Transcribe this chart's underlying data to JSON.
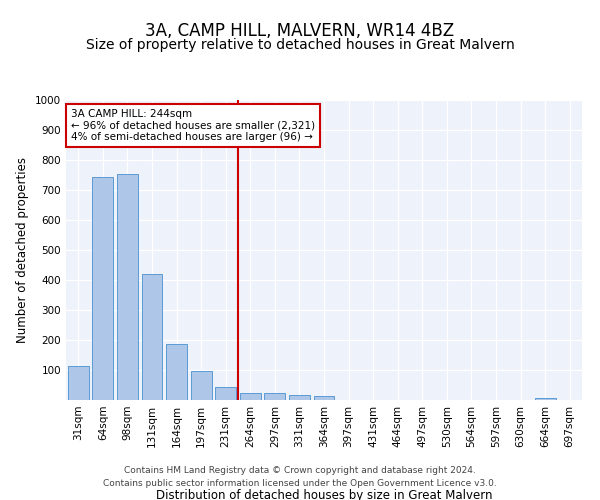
{
  "title": "3A, CAMP HILL, MALVERN, WR14 4BZ",
  "subtitle": "Size of property relative to detached houses in Great Malvern",
  "xlabel": "Distribution of detached houses by size in Great Malvern",
  "ylabel": "Number of detached properties",
  "footer_line1": "Contains HM Land Registry data © Crown copyright and database right 2024.",
  "footer_line2": "Contains public sector information licensed under the Open Government Licence v3.0.",
  "bar_labels": [
    "31sqm",
    "64sqm",
    "98sqm",
    "131sqm",
    "164sqm",
    "197sqm",
    "231sqm",
    "264sqm",
    "297sqm",
    "331sqm",
    "364sqm",
    "397sqm",
    "431sqm",
    "464sqm",
    "497sqm",
    "530sqm",
    "564sqm",
    "597sqm",
    "630sqm",
    "664sqm",
    "697sqm"
  ],
  "bar_values": [
    113,
    743,
    755,
    420,
    186,
    97,
    45,
    22,
    24,
    17,
    15,
    0,
    0,
    0,
    0,
    0,
    0,
    0,
    0,
    8,
    0
  ],
  "bar_color": "#aec6e8",
  "bar_edgecolor": "#5b9bd5",
  "vline_x": 6.5,
  "annotation_title": "3A CAMP HILL: 244sqm",
  "annotation_line2": "← 96% of detached houses are smaller (2,321)",
  "annotation_line3": "4% of semi-detached houses are larger (96) →",
  "vline_color": "#cc0000",
  "annotation_box_edgecolor": "#cc0000",
  "ylim": [
    0,
    1000
  ],
  "yticks": [
    0,
    100,
    200,
    300,
    400,
    500,
    600,
    700,
    800,
    900,
    1000
  ],
  "background_color": "#eef2fa",
  "title_fontsize": 12,
  "subtitle_fontsize": 10,
  "axis_label_fontsize": 8.5,
  "tick_fontsize": 7.5,
  "footer_fontsize": 6.5
}
